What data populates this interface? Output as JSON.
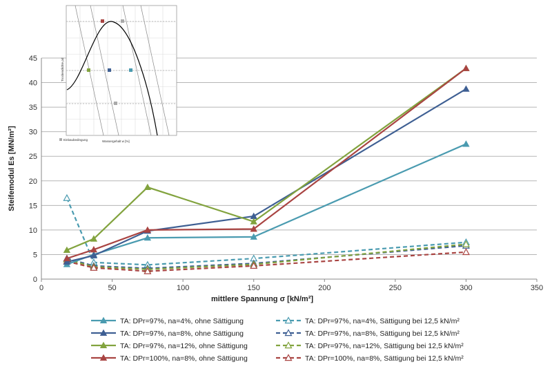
{
  "chart_data": {
    "type": "line",
    "title": "",
    "xlabel": "mittlere Spannung σ [kN/m²]",
    "ylabel": "Steifemodul Es [MN/m²]",
    "xlim": [
      0,
      350
    ],
    "ylim": [
      0,
      45
    ],
    "xticks": [
      0,
      50,
      100,
      150,
      200,
      250,
      300,
      350
    ],
    "yticks": [
      0,
      5,
      10,
      15,
      20,
      25,
      30,
      35,
      40,
      45
    ],
    "grid": "horizontal",
    "legend_position": "bottom",
    "series": [
      {
        "name": "TA: DPr=97%, na=4%, ohne Sättigung",
        "color": "#4a9bb0",
        "dashed": false,
        "x": [
          18,
          37,
          75,
          150,
          300
        ],
        "y": [
          3.0,
          5.0,
          8.4,
          8.6,
          27.5
        ]
      },
      {
        "name": "TA: DPr=97%, na=8%, ohne Sättigung",
        "color": "#3e5f93",
        "dashed": false,
        "x": [
          18,
          37,
          75,
          150,
          300
        ],
        "y": [
          3.5,
          4.8,
          9.8,
          12.8,
          38.7
        ]
      },
      {
        "name": "TA: DPr=97%, na=12%, ohne Sättigung",
        "color": "#82a33e",
        "dashed": false,
        "x": [
          18,
          37,
          75,
          150,
          300
        ],
        "y": [
          5.9,
          8.2,
          18.7,
          11.7,
          42.9
        ]
      },
      {
        "name": "TA: DPr=100%, na=8%, ohne Sättigung",
        "color": "#a94442",
        "dashed": false,
        "x": [
          18,
          37,
          75,
          150,
          300
        ],
        "y": [
          4.2,
          6.0,
          10.0,
          10.2,
          42.9
        ]
      },
      {
        "name": "TA: DPr=97%, na=4%, Sättigung bei 12,5 kN/m²",
        "color": "#4a9bb0",
        "dashed": true,
        "x": [
          18,
          37,
          75,
          150,
          300
        ],
        "y": [
          16.5,
          3.4,
          2.9,
          4.2,
          7.5
        ]
      },
      {
        "name": "TA: DPr=97%, na=8%, Sättigung bei 12,5 kN/m²",
        "color": "#3e5f93",
        "dashed": true,
        "x": [
          18,
          37,
          75,
          150,
          300
        ],
        "y": [
          4.2,
          2.7,
          2.2,
          3.2,
          6.8
        ]
      },
      {
        "name": "TA: DPr=97%, na=12%, Sättigung bei 12,5 kN/m²",
        "color": "#82a33e",
        "dashed": true,
        "x": [
          18,
          37,
          75,
          150,
          300
        ],
        "y": [
          4.0,
          2.5,
          2.0,
          3.0,
          7.1
        ]
      },
      {
        "name": "TA: DPr=100%, na=8%, Sättigung bei 12,5 kN/m²",
        "color": "#a94442",
        "dashed": true,
        "x": [
          18,
          37,
          75,
          150,
          300
        ],
        "y": [
          3.6,
          2.3,
          1.6,
          2.7,
          5.5
        ]
      }
    ]
  },
  "inset": {
    "ylabel": "Trockendichte ρd",
    "xlabel": "Wassergehalt w [%]",
    "legend_label": "Einbaubedingung"
  }
}
